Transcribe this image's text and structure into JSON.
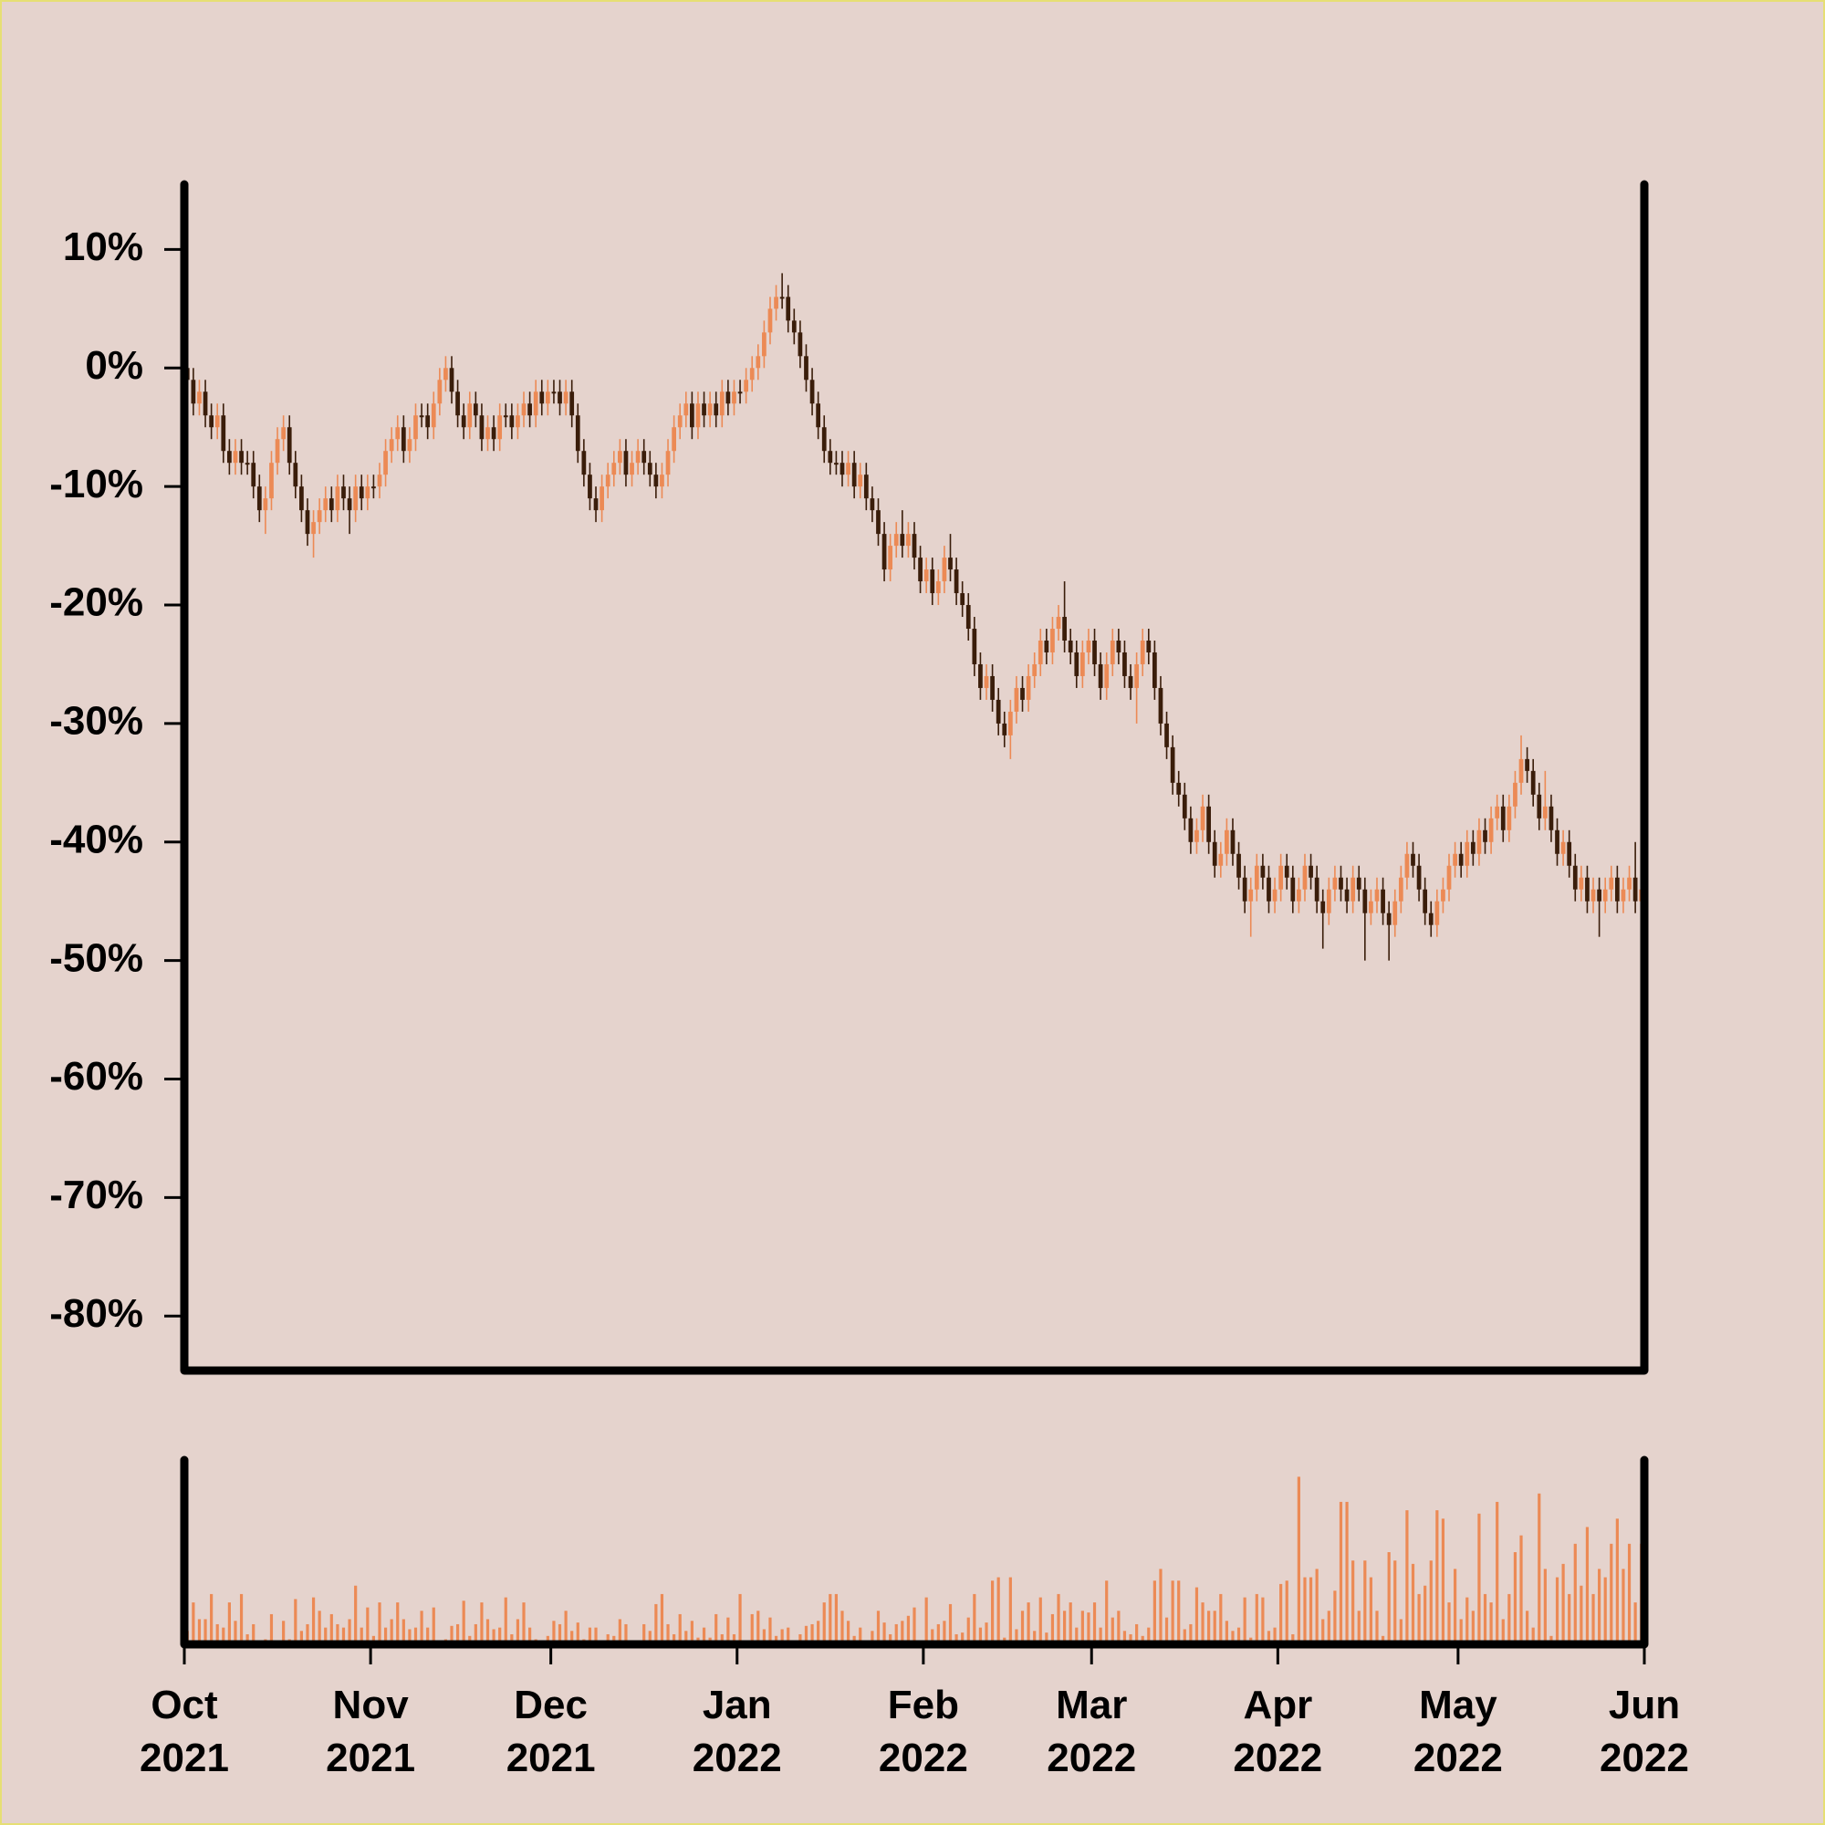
{
  "chart_data": {
    "type": "candlestick",
    "up_color": "#ec8a55",
    "down_color": "#3a1d0a",
    "volume_color": "#ec8a55",
    "ylim": [
      -84.6,
      15.5
    ],
    "yticks": [
      {
        "value": 10,
        "label": "10%"
      },
      {
        "value": 0,
        "label": "0%"
      },
      {
        "value": -10,
        "label": "-10%"
      },
      {
        "value": -20,
        "label": "-20%"
      },
      {
        "value": -30,
        "label": "-30%"
      },
      {
        "value": -40,
        "label": "-40%"
      },
      {
        "value": -50,
        "label": "-50%"
      },
      {
        "value": -60,
        "label": "-60%"
      },
      {
        "value": -70,
        "label": "-70%"
      },
      {
        "value": -80,
        "label": "-80%"
      }
    ],
    "xlim": [
      0,
      243
    ],
    "xticks": [
      {
        "value": 0,
        "label": "Oct\n2021"
      },
      {
        "value": 31,
        "label": "Nov\n2021"
      },
      {
        "value": 61,
        "label": "Dec\n2021"
      },
      {
        "value": 92,
        "label": "Jan\n2022"
      },
      {
        "value": 123,
        "label": "Feb\n2022"
      },
      {
        "value": 151,
        "label": "Mar\n2022"
      },
      {
        "value": 182,
        "label": "Apr\n2022"
      },
      {
        "value": 212,
        "label": "May\n2022"
      },
      {
        "value": 243,
        "label": "Jun\n2022"
      }
    ],
    "volume_ylim": [
      0,
      110
    ],
    "open": [
      0,
      -1,
      -3,
      -2,
      -4,
      -5,
      -4,
      -7,
      -8,
      -7,
      -8,
      -8,
      -10,
      -12,
      -11,
      -8,
      -6,
      -5,
      -8,
      -10,
      -12,
      -14,
      -13,
      -12,
      -11,
      -12,
      -10,
      -11,
      -12,
      -10,
      -11,
      -10,
      -10,
      -9,
      -7,
      -6,
      -5,
      -7,
      -6,
      -4,
      -4,
      -5,
      -3,
      -1,
      0,
      -2,
      -4,
      -5,
      -3,
      -4,
      -6,
      -5,
      -6,
      -4,
      -4,
      -5,
      -4,
      -3,
      -4,
      -2,
      -3,
      -2,
      -2,
      -3,
      -2,
      -4,
      -7,
      -9,
      -11,
      -12,
      -10,
      -9,
      -8,
      -7,
      -9,
      -8,
      -7,
      -8,
      -9,
      -10,
      -9,
      -7,
      -5,
      -4,
      -3,
      -5,
      -3,
      -4,
      -3,
      -4,
      -2,
      -3,
      -2,
      -2,
      -1,
      0,
      1,
      3,
      5,
      6,
      6,
      4,
      3,
      1,
      -1,
      -3,
      -5,
      -7,
      -8,
      -8,
      -9,
      -8,
      -10,
      -9,
      -11,
      -12,
      -14,
      -17,
      -15,
      -14,
      -15,
      -14,
      -16,
      -18,
      -17,
      -19,
      -18,
      -16,
      -17,
      -19,
      -20,
      -22,
      -25,
      -27,
      -26,
      -28,
      -30,
      -31,
      -29,
      -27,
      -28,
      -26,
      -25,
      -23,
      -24,
      -22,
      -21,
      -23,
      -24,
      -26,
      -24,
      -23,
      -25,
      -27,
      -25,
      -23,
      -24,
      -26,
      -27,
      -25,
      -23,
      -24,
      -27,
      -30,
      -32,
      -35,
      -36,
      -38,
      -40,
      -39,
      -37,
      -40,
      -42,
      -41,
      -39,
      -41,
      -43,
      -45,
      -44,
      -42,
      -43,
      -45,
      -44,
      -42,
      -43,
      -45,
      -44,
      -42,
      -43,
      -45,
      -46,
      -44,
      -43,
      -44,
      -45,
      -43,
      -44,
      -46,
      -45,
      -44,
      -46,
      -47,
      -45,
      -43,
      -41,
      -42,
      -44,
      -46,
      -47,
      -45,
      -44,
      -42,
      -41,
      -42,
      -40,
      -41,
      -39,
      -40,
      -38,
      -37,
      -39,
      -37,
      -35,
      -33,
      -34,
      -36,
      -38,
      -37,
      -39,
      -41,
      -40,
      -42,
      -44,
      -43,
      -45,
      -44,
      -45,
      -44,
      -43,
      -45,
      -44,
      -43,
      -45
    ],
    "high": [
      1,
      0,
      -1,
      -1,
      -3,
      -3,
      -3,
      -6,
      -6,
      -6,
      -7,
      -7,
      -9,
      -10,
      -7,
      -5,
      -4,
      -4,
      -7,
      -9,
      -11,
      -12,
      -11,
      -10,
      -10,
      -9,
      -9,
      -10,
      -9,
      -9,
      -9,
      -9,
      -8,
      -6,
      -5,
      -4,
      -4,
      -5,
      -3,
      -3,
      -3,
      -2,
      0,
      1,
      1,
      -1,
      -3,
      -2,
      -2,
      -3,
      -4,
      -4,
      -3,
      -3,
      -3,
      -3,
      -2,
      -2,
      -1,
      -1,
      -1,
      -1,
      -1,
      -1,
      -1,
      -3,
      -6,
      -8,
      -10,
      -9,
      -8,
      -7,
      -6,
      -6,
      -7,
      -6,
      -6,
      -7,
      -8,
      -8,
      -6,
      -4,
      -3,
      -2,
      -2,
      -2,
      -2,
      -2,
      -2,
      -1,
      -1,
      -1,
      -1,
      0,
      1,
      2,
      4,
      6,
      7,
      8,
      7,
      5,
      4,
      2,
      0,
      -2,
      -4,
      -6,
      -7,
      -7,
      -7,
      -7,
      -8,
      -8,
      -10,
      -11,
      -13,
      -14,
      -13,
      -12,
      -13,
      -13,
      -15,
      -16,
      -16,
      -17,
      -15,
      -14,
      -16,
      -18,
      -19,
      -21,
      -24,
      -25,
      -25,
      -27,
      -29,
      -28,
      -26,
      -26,
      -25,
      -24,
      -22,
      -22,
      -21,
      -20,
      -18,
      -22,
      -23,
      -23,
      -22,
      -22,
      -24,
      -24,
      -22,
      -22,
      -23,
      -25,
      -24,
      -22,
      -22,
      -23,
      -26,
      -29,
      -31,
      -34,
      -35,
      -37,
      -38,
      -36,
      -36,
      -39,
      -40,
      -38,
      -38,
      -40,
      -42,
      -43,
      -41,
      -41,
      -42,
      -43,
      -41,
      -41,
      -42,
      -43,
      -41,
      -41,
      -42,
      -44,
      -43,
      -42,
      -42,
      -43,
      -42,
      -42,
      -43,
      -44,
      -43,
      -43,
      -45,
      -44,
      -42,
      -40,
      -40,
      -41,
      -43,
      -45,
      -44,
      -43,
      -41,
      -40,
      -40,
      -39,
      -39,
      -38,
      -38,
      -37,
      -36,
      -36,
      -36,
      -34,
      -31,
      -32,
      -33,
      -35,
      -34,
      -36,
      -38,
      -39,
      -39,
      -41,
      -42,
      -42,
      -43,
      -43,
      -43,
      -42,
      -42,
      -43,
      -42,
      -40,
      -43
    ],
    "low": [
      -2,
      -4,
      -4,
      -5,
      -6,
      -6,
      -8,
      -9,
      -9,
      -9,
      -9,
      -11,
      -13,
      -14,
      -12,
      -9,
      -7,
      -9,
      -11,
      -13,
      -15,
      -16,
      -14,
      -13,
      -13,
      -13,
      -12,
      -14,
      -13,
      -12,
      -12,
      -11,
      -11,
      -10,
      -8,
      -7,
      -8,
      -8,
      -7,
      -5,
      -6,
      -6,
      -4,
      -2,
      -3,
      -5,
      -6,
      -6,
      -5,
      -7,
      -7,
      -7,
      -7,
      -5,
      -6,
      -6,
      -5,
      -5,
      -5,
      -4,
      -4,
      -3,
      -4,
      -4,
      -5,
      -8,
      -10,
      -12,
      -13,
      -13,
      -11,
      -10,
      -9,
      -10,
      -10,
      -9,
      -9,
      -10,
      -11,
      -11,
      -10,
      -8,
      -6,
      -5,
      -6,
      -6,
      -5,
      -5,
      -5,
      -5,
      -4,
      -4,
      -3,
      -3,
      -2,
      -1,
      0,
      2,
      4,
      5,
      3,
      2,
      0,
      -2,
      -4,
      -6,
      -8,
      -9,
      -9,
      -10,
      -10,
      -11,
      -11,
      -12,
      -13,
      -15,
      -18,
      -18,
      -16,
      -16,
      -16,
      -17,
      -19,
      -19,
      -20,
      -20,
      -19,
      -18,
      -20,
      -21,
      -23,
      -26,
      -28,
      -28,
      -29,
      -31,
      -32,
      -33,
      -30,
      -29,
      -29,
      -27,
      -26,
      -25,
      -25,
      -23,
      -24,
      -25,
      -27,
      -27,
      -25,
      -26,
      -28,
      -28,
      -26,
      -25,
      -27,
      -28,
      -30,
      -26,
      -25,
      -28,
      -31,
      -33,
      -36,
      -37,
      -39,
      -41,
      -41,
      -40,
      -41,
      -43,
      -43,
      -42,
      -42,
      -44,
      -46,
      -48,
      -45,
      -44,
      -46,
      -46,
      -45,
      -44,
      -46,
      -46,
      -45,
      -44,
      -46,
      -49,
      -47,
      -45,
      -45,
      -46,
      -46,
      -45,
      -50,
      -47,
      -46,
      -47,
      -50,
      -48,
      -46,
      -44,
      -43,
      -45,
      -47,
      -48,
      -48,
      -46,
      -45,
      -43,
      -43,
      -43,
      -42,
      -42,
      -41,
      -41,
      -39,
      -40,
      -40,
      -38,
      -36,
      -35,
      -37,
      -39,
      -39,
      -40,
      -42,
      -42,
      -43,
      -45,
      -45,
      -46,
      -46,
      -48,
      -46,
      -45,
      -46,
      -46,
      -45,
      -46,
      -48
    ],
    "close": [
      -1,
      -3,
      -2,
      -4,
      -5,
      -4,
      -7,
      -8,
      -7,
      -8,
      -8,
      -10,
      -12,
      -11,
      -8,
      -6,
      -5,
      -8,
      -10,
      -12,
      -14,
      -13,
      -12,
      -11,
      -12,
      -10,
      -11,
      -12,
      -10,
      -11,
      -10,
      -10,
      -9,
      -7,
      -6,
      -5,
      -7,
      -6,
      -4,
      -4,
      -5,
      -3,
      -1,
      0,
      -2,
      -4,
      -5,
      -3,
      -4,
      -6,
      -5,
      -6,
      -4,
      -4,
      -5,
      -4,
      -3,
      -4,
      -2,
      -3,
      -2,
      -2,
      -3,
      -2,
      -4,
      -7,
      -9,
      -11,
      -12,
      -10,
      -9,
      -8,
      -7,
      -9,
      -8,
      -7,
      -8,
      -9,
      -10,
      -9,
      -7,
      -5,
      -4,
      -3,
      -5,
      -3,
      -4,
      -3,
      -4,
      -2,
      -3,
      -2,
      -2,
      -1,
      0,
      1,
      3,
      5,
      6,
      6,
      4,
      3,
      1,
      -1,
      -3,
      -5,
      -7,
      -8,
      -8,
      -9,
      -8,
      -10,
      -9,
      -11,
      -12,
      -14,
      -17,
      -15,
      -14,
      -15,
      -14,
      -16,
      -18,
      -17,
      -19,
      -18,
      -16,
      -17,
      -19,
      -20,
      -22,
      -25,
      -27,
      -26,
      -28,
      -30,
      -31,
      -29,
      -27,
      -28,
      -26,
      -25,
      -23,
      -24,
      -22,
      -21,
      -23,
      -24,
      -26,
      -24,
      -23,
      -25,
      -27,
      -25,
      -23,
      -24,
      -26,
      -27,
      -25,
      -23,
      -24,
      -27,
      -30,
      -32,
      -35,
      -36,
      -38,
      -40,
      -39,
      -37,
      -40,
      -42,
      -41,
      -39,
      -41,
      -43,
      -45,
      -44,
      -42,
      -43,
      -45,
      -44,
      -42,
      -43,
      -45,
      -44,
      -42,
      -43,
      -45,
      -46,
      -44,
      -43,
      -44,
      -45,
      -43,
      -44,
      -46,
      -45,
      -44,
      -46,
      -47,
      -45,
      -43,
      -41,
      -42,
      -44,
      -46,
      -47,
      -45,
      -44,
      -42,
      -41,
      -42,
      -40,
      -41,
      -39,
      -40,
      -38,
      -37,
      -39,
      -37,
      -35,
      -33,
      -34,
      -36,
      -38,
      -37,
      -39,
      -41,
      -40,
      -42,
      -44,
      -43,
      -45,
      -44,
      -45,
      -44,
      -43,
      -45,
      -44,
      -43,
      -45,
      -44
    ],
    "volume": [
      8,
      25,
      15,
      15,
      30,
      12,
      10,
      25,
      14,
      30,
      6,
      12,
      2,
      3,
      18,
      1,
      14,
      3,
      27,
      8,
      12,
      28,
      20,
      10,
      18,
      12,
      10,
      15,
      35,
      10,
      22,
      5,
      25,
      10,
      15,
      25,
      15,
      9,
      10,
      20,
      10,
      22,
      2,
      3,
      11,
      12,
      26,
      5,
      12,
      25,
      15,
      9,
      10,
      28,
      6,
      15,
      25,
      10,
      3,
      1,
      5,
      14,
      12,
      20,
      8,
      13,
      3,
      10,
      10,
      2,
      6,
      5,
      15,
      12,
      2,
      1,
      12,
      8,
      24,
      30,
      12,
      6,
      18,
      8,
      14,
      4,
      10,
      4,
      18,
      6,
      16,
      6,
      30,
      2,
      18,
      20,
      9,
      16,
      5,
      9,
      10,
      1,
      6,
      11,
      12,
      14,
      25,
      30,
      30,
      20,
      14,
      5,
      10,
      2,
      8,
      20,
      13,
      6,
      12,
      14,
      17,
      22,
      1,
      28,
      9,
      12,
      14,
      24,
      6,
      7,
      16,
      30,
      10,
      13,
      38,
      40,
      4,
      40,
      9,
      20,
      25,
      8,
      28,
      7,
      18,
      30,
      20,
      25,
      10,
      20,
      19,
      25,
      10,
      38,
      16,
      20,
      8,
      6,
      12,
      5,
      10,
      38,
      45,
      16,
      38,
      38,
      9,
      12,
      34,
      25,
      20,
      20,
      30,
      14,
      8,
      10,
      28,
      4,
      30,
      28,
      8,
      10,
      36,
      38,
      6,
      100,
      40,
      40,
      45,
      15,
      20,
      32,
      85,
      85,
      50,
      20,
      50,
      40,
      20,
      5,
      55,
      50,
      15,
      80,
      48,
      30,
      35,
      50,
      80,
      75,
      25,
      45,
      15,
      28,
      20,
      78,
      30,
      25,
      85,
      15,
      30,
      55,
      65,
      20,
      10,
      90,
      45,
      5,
      40,
      48,
      30,
      60,
      35,
      70,
      30,
      45,
      40,
      60,
      75,
      45,
      60,
      25,
      60
    ]
  }
}
